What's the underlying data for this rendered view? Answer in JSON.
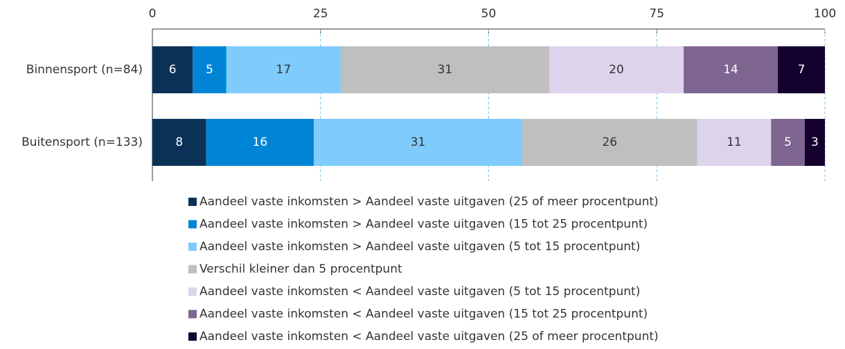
{
  "chart_data": {
    "type": "stacked_barh",
    "categories": [
      "Binnensport (n=84)",
      "Buitensport (n=133)"
    ],
    "series": [
      {
        "name": "Aandeel vaste inkomsten > Aandeel vaste uitgaven (25 of meer procentpunt)",
        "color": "#0b3256",
        "values": [
          6,
          8
        ]
      },
      {
        "name": "Aandeel vaste inkomsten > Aandeel vaste uitgaven (15 tot 25 procentpunt)",
        "color": "#0085d6",
        "values": [
          5,
          16
        ]
      },
      {
        "name": "Aandeel vaste inkomsten > Aandeel vaste uitgaven (5 tot 15 procentpunt)",
        "color": "#7ecbfc",
        "values": [
          17,
          31
        ]
      },
      {
        "name": "Verschil kleiner dan 5 procentpunt",
        "color": "#bfbfbf",
        "values": [
          31,
          26
        ]
      },
      {
        "name": "Aandeel vaste inkomsten < Aandeel vaste uitgaven (5 tot 15 procentpunt)",
        "color": "#ddd3ea",
        "values": [
          20,
          11
        ]
      },
      {
        "name": "Aandeel vaste inkomsten < Aandeel vaste uitgaven (15 tot 25 procentpunt)",
        "color": "#7e6590",
        "values": [
          14,
          5
        ]
      },
      {
        "name": "Aandeel vaste inkomsten < Aandeel vaste uitgaven (25 of meer procentpunt)",
        "color": "#14002e",
        "values": [
          7,
          3
        ]
      }
    ],
    "xlim": [
      0,
      100
    ],
    "xticks": [
      0,
      25,
      50,
      75,
      100
    ],
    "grid": true
  }
}
